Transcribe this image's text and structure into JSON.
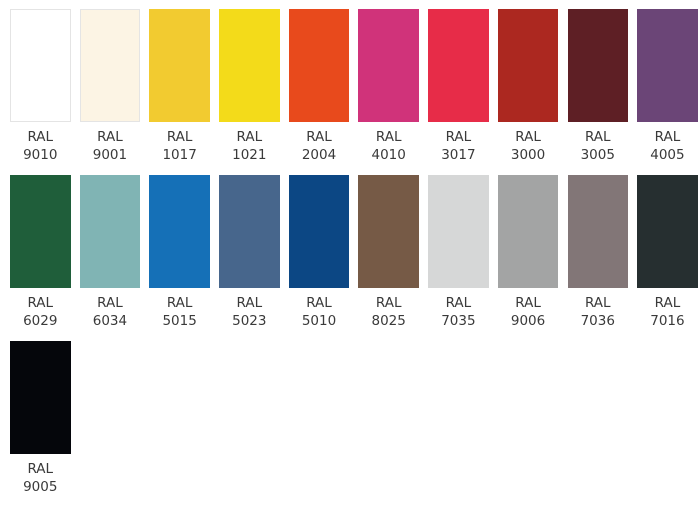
{
  "swatches": [
    {
      "prefix": "RAL",
      "code": "9010",
      "color": "#ffffff"
    },
    {
      "prefix": "RAL",
      "code": "9001",
      "color": "#fcf4e4"
    },
    {
      "prefix": "RAL",
      "code": "1017",
      "color": "#f2cb30"
    },
    {
      "prefix": "RAL",
      "code": "1021",
      "color": "#f3db1a"
    },
    {
      "prefix": "RAL",
      "code": "2004",
      "color": "#e84a1c"
    },
    {
      "prefix": "RAL",
      "code": "4010",
      "color": "#d0337a"
    },
    {
      "prefix": "RAL",
      "code": "3017",
      "color": "#e72c48"
    },
    {
      "prefix": "RAL",
      "code": "3000",
      "color": "#ac2820"
    },
    {
      "prefix": "RAL",
      "code": "3005",
      "color": "#5e1f25"
    },
    {
      "prefix": "RAL",
      "code": "4005",
      "color": "#6b4577"
    },
    {
      "prefix": "RAL",
      "code": "6029",
      "color": "#1f5e3a"
    },
    {
      "prefix": "RAL",
      "code": "6034",
      "color": "#80b4b4"
    },
    {
      "prefix": "RAL",
      "code": "5015",
      "color": "#1570b7"
    },
    {
      "prefix": "RAL",
      "code": "5023",
      "color": "#47668c"
    },
    {
      "prefix": "RAL",
      "code": "5010",
      "color": "#0c4784"
    },
    {
      "prefix": "RAL",
      "code": "8025",
      "color": "#765a46"
    },
    {
      "prefix": "RAL",
      "code": "7035",
      "color": "#d6d7d7"
    },
    {
      "prefix": "RAL",
      "code": "9006",
      "color": "#a3a4a4"
    },
    {
      "prefix": "RAL",
      "code": "7036",
      "color": "#827677"
    },
    {
      "prefix": "RAL",
      "code": "7016",
      "color": "#262f30"
    },
    {
      "prefix": "RAL",
      "code": "9005",
      "color": "#05060b"
    }
  ]
}
